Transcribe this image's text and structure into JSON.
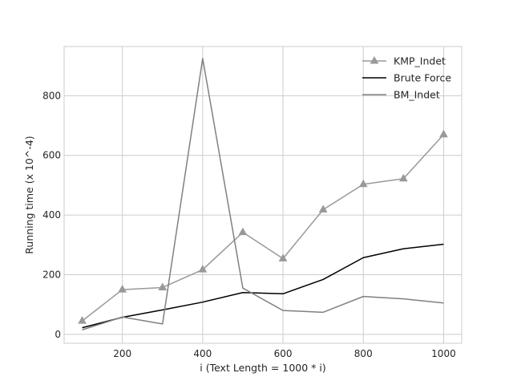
{
  "chart_data": {
    "type": "line",
    "title": "",
    "xlabel": "i (Text Length = 1000 * i)",
    "ylabel": "Running time (x 10^-4)",
    "x": [
      100,
      200,
      300,
      400,
      500,
      600,
      700,
      800,
      900,
      1000
    ],
    "xlim": [
      55,
      1045
    ],
    "ylim": [
      -30,
      965
    ],
    "xticks": [
      200,
      400,
      600,
      800,
      1000
    ],
    "yticks": [
      0,
      200,
      400,
      600,
      800
    ],
    "grid": true,
    "legend_position": "top-right",
    "series": [
      {
        "name": "KMP_Indet",
        "color": "#999999",
        "marker": "triangle",
        "values": [
          45,
          150,
          157,
          217,
          342,
          254,
          418,
          503,
          522,
          670
        ]
      },
      {
        "name": "Brute Force",
        "color": "#000000",
        "marker": "none",
        "values": [
          22,
          57,
          82,
          108,
          140,
          136,
          184,
          257,
          287,
          302
        ]
      },
      {
        "name": "BM_Indet",
        "color": "#808080",
        "marker": "none",
        "values": [
          15,
          58,
          35,
          925,
          155,
          80,
          74,
          127,
          119,
          105
        ]
      }
    ]
  }
}
